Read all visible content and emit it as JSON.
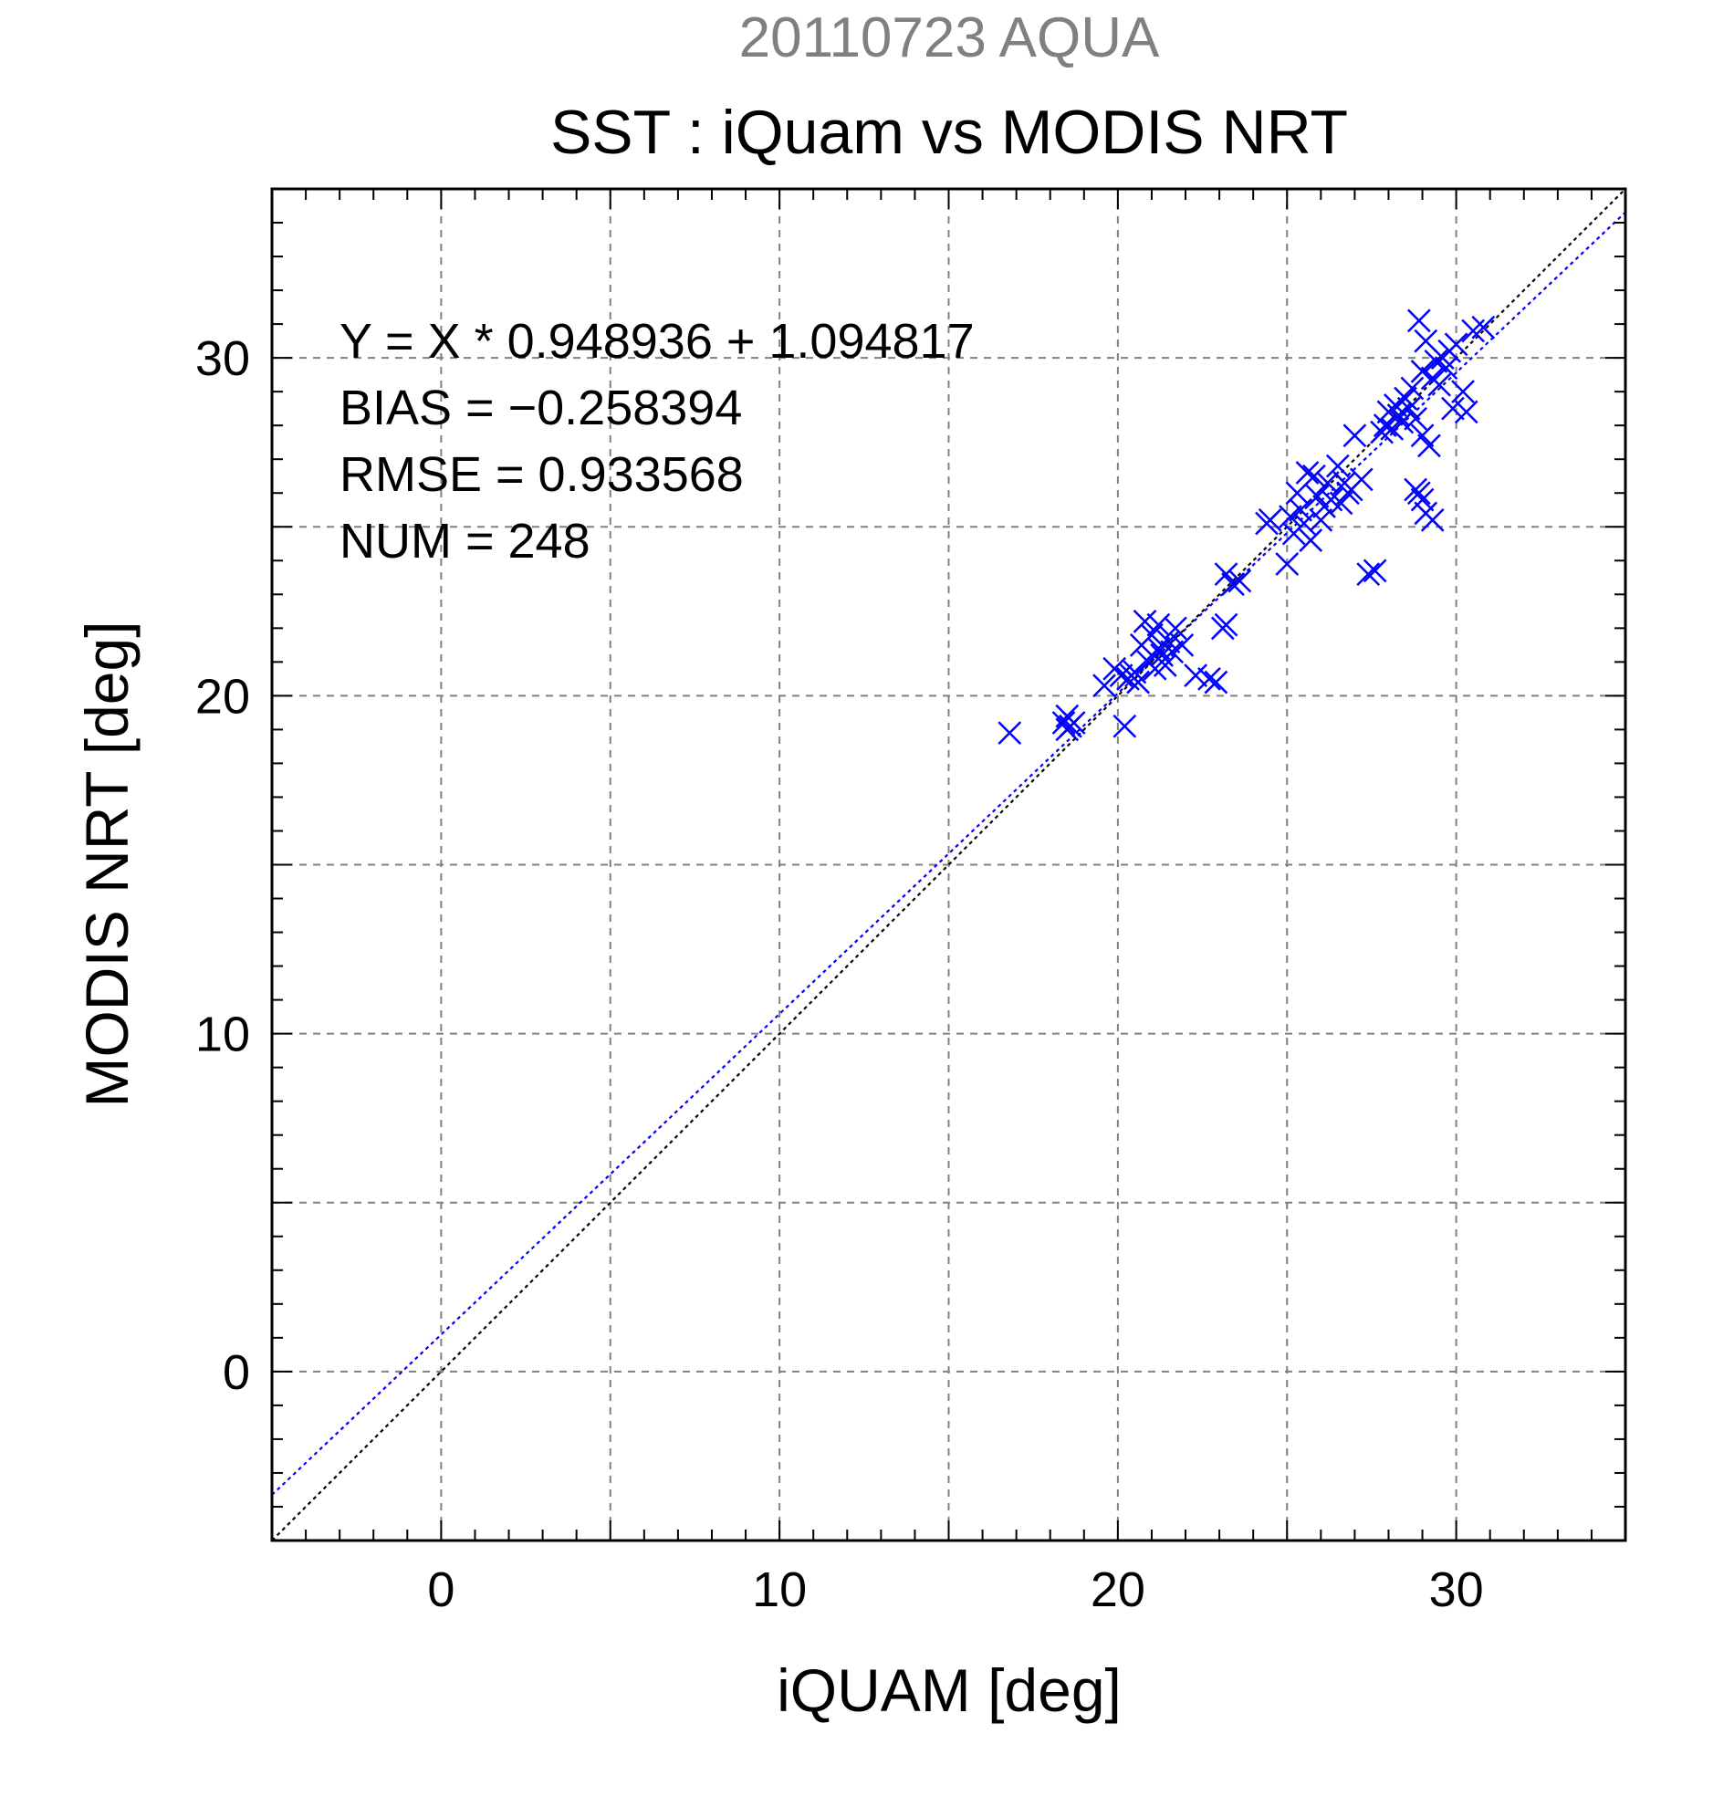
{
  "chart_data": {
    "type": "scatter",
    "subtitle": "20110723 AQUA",
    "title": "SST : iQuam vs MODIS NRT",
    "xlabel": "iQUAM [deg]",
    "ylabel": "MODIS NRT [deg]",
    "xlim": [
      -5,
      35
    ],
    "ylim": [
      -5,
      35
    ],
    "xticks": [
      0,
      10,
      20,
      30
    ],
    "yticks": [
      0,
      10,
      20,
      30
    ],
    "grid": true,
    "marker": "x",
    "colors": {
      "points": "#0000ff",
      "fit_line": "#0000ff",
      "identity_line": "#000000",
      "subtitle": "#808080",
      "grid": "#808080"
    },
    "stats": [
      "Y = X * 0.948936 + 1.094817",
      "BIAS = −0.258394",
      "RMSE = 0.933568",
      "NUM = 248"
    ],
    "lines": [
      {
        "kind": "regression",
        "slope": 0.948936,
        "intercept": 1.094817,
        "style": "dotted",
        "color": "#0000ff"
      },
      {
        "kind": "identity",
        "slope": 1,
        "intercept": 0,
        "style": "dotted",
        "color": "#000000"
      }
    ],
    "points": [
      [
        16.8,
        18.9
      ],
      [
        18.4,
        19.2
      ],
      [
        18.5,
        19.4
      ],
      [
        18.6,
        19.1
      ],
      [
        18.7,
        19.2
      ],
      [
        18.5,
        19.0
      ],
      [
        19.6,
        20.3
      ],
      [
        19.9,
        20.8
      ],
      [
        20.1,
        20.6
      ],
      [
        20.2,
        19.1
      ],
      [
        20.3,
        20.5
      ],
      [
        20.4,
        20.6
      ],
      [
        20.5,
        20.7
      ],
      [
        20.6,
        20.4
      ],
      [
        20.7,
        21.5
      ],
      [
        20.8,
        22.2
      ],
      [
        20.9,
        21.0
      ],
      [
        21.0,
        21.8
      ],
      [
        21.1,
        20.8
      ],
      [
        21.2,
        22.1
      ],
      [
        21.3,
        21.2
      ],
      [
        21.4,
        20.9
      ],
      [
        21.5,
        21.6
      ],
      [
        21.6,
        21.3
      ],
      [
        21.7,
        22.0
      ],
      [
        21.2,
        21.4
      ],
      [
        21.9,
        21.5
      ],
      [
        22.3,
        20.6
      ],
      [
        22.7,
        20.5
      ],
      [
        22.9,
        20.4
      ],
      [
        23.1,
        22.0
      ],
      [
        23.2,
        22.1
      ],
      [
        23.2,
        23.6
      ],
      [
        23.4,
        23.3
      ],
      [
        23.6,
        23.4
      ],
      [
        24.4,
        25.1
      ],
      [
        24.5,
        25.2
      ],
      [
        25.0,
        23.9
      ],
      [
        25.1,
        25.3
      ],
      [
        25.2,
        24.8
      ],
      [
        25.3,
        26.0
      ],
      [
        25.4,
        25.5
      ],
      [
        25.5,
        25.1
      ],
      [
        25.6,
        26.6
      ],
      [
        25.7,
        24.6
      ],
      [
        25.8,
        26.5
      ],
      [
        25.9,
        25.9
      ],
      [
        26.0,
        25.2
      ],
      [
        26.1,
        25.6
      ],
      [
        26.2,
        26.3
      ],
      [
        26.3,
        25.8
      ],
      [
        26.5,
        26.8
      ],
      [
        26.6,
        25.7
      ],
      [
        26.7,
        26.3
      ],
      [
        26.8,
        26.0
      ],
      [
        26.9,
        26.1
      ],
      [
        27.0,
        27.7
      ],
      [
        27.2,
        26.4
      ],
      [
        27.4,
        23.6
      ],
      [
        27.6,
        23.7
      ],
      [
        27.8,
        27.8
      ],
      [
        27.9,
        28.0
      ],
      [
        28.0,
        28.4
      ],
      [
        28.1,
        27.9
      ],
      [
        28.2,
        28.6
      ],
      [
        28.3,
        28.3
      ],
      [
        28.4,
        28.1
      ],
      [
        28.5,
        28.8
      ],
      [
        28.6,
        28.5
      ],
      [
        28.7,
        29.1
      ],
      [
        28.8,
        28.2
      ],
      [
        28.8,
        26.1
      ],
      [
        28.9,
        26.0
      ],
      [
        29.0,
        27.7
      ],
      [
        29.0,
        25.8
      ],
      [
        29.1,
        25.4
      ],
      [
        29.2,
        27.4
      ],
      [
        29.3,
        25.2
      ],
      [
        29.3,
        29.4
      ],
      [
        29.4,
        29.9
      ],
      [
        29.5,
        29.2
      ],
      [
        29.6,
        30.0
      ],
      [
        29.7,
        29.7
      ],
      [
        29.8,
        30.2
      ],
      [
        29.9,
        28.5
      ],
      [
        30.0,
        30.4
      ],
      [
        30.2,
        29.0
      ],
      [
        30.3,
        28.4
      ],
      [
        30.5,
        30.8
      ],
      [
        30.8,
        30.9
      ],
      [
        28.9,
        31.1
      ],
      [
        29.1,
        30.5
      ],
      [
        29.0,
        29.6
      ]
    ]
  }
}
